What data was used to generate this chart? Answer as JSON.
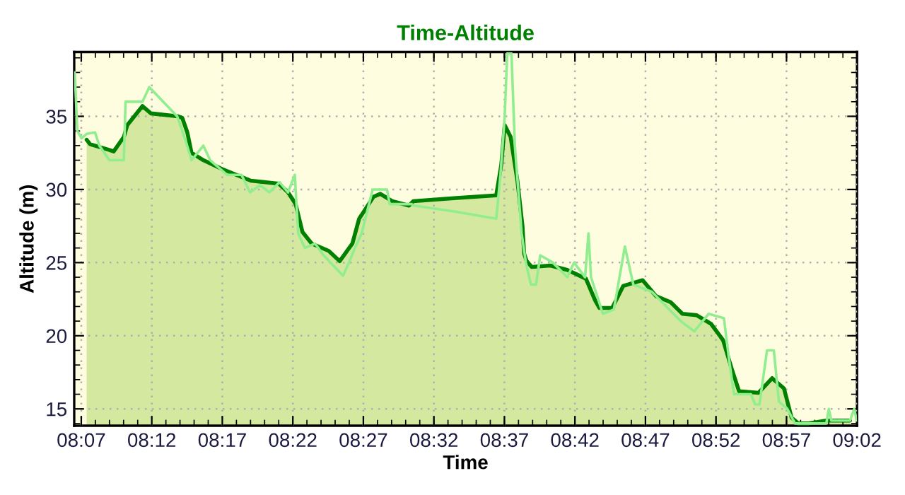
{
  "chart_data": {
    "type": "line",
    "title": "Time-Altitude",
    "xlabel": "Time",
    "ylabel": "Altitude (m)",
    "xlim": [
      8.10833,
      9.03333
    ],
    "ylim": [
      13.85,
      39.4
    ],
    "xticks": [
      {
        "value": 8.11667,
        "label": "08:07"
      },
      {
        "value": 8.2,
        "label": "08:12"
      },
      {
        "value": 8.28333,
        "label": "08:17"
      },
      {
        "value": 8.36667,
        "label": "08:22"
      },
      {
        "value": 8.45,
        "label": "08:27"
      },
      {
        "value": 8.53333,
        "label": "08:32"
      },
      {
        "value": 8.61667,
        "label": "08:37"
      },
      {
        "value": 8.7,
        "label": "08:42"
      },
      {
        "value": 8.78333,
        "label": "08:47"
      },
      {
        "value": 8.86667,
        "label": "08:52"
      },
      {
        "value": 8.95,
        "label": "08:57"
      },
      {
        "value": 9.03333,
        "label": "09:02"
      }
    ],
    "yticks": [
      15,
      20,
      25,
      30,
      35
    ],
    "grid": true,
    "legend": false,
    "marker": "none",
    "line_style": "solid",
    "series": [
      {
        "color": "#90ee90",
        "x": [
          8.109,
          8.112,
          8.117,
          8.123,
          8.133,
          8.138,
          8.15,
          8.167,
          8.169,
          8.189,
          8.197,
          8.23,
          8.239,
          8.247,
          8.261,
          8.269,
          8.289,
          8.306,
          8.316,
          8.328,
          8.339,
          8.351,
          8.361,
          8.369,
          8.373,
          8.381,
          8.393,
          8.403,
          8.426,
          8.433,
          8.44,
          8.448,
          8.461,
          8.478,
          8.481,
          8.507,
          8.51,
          8.557,
          8.607,
          8.612,
          8.617,
          8.62,
          8.625,
          8.629,
          8.637,
          8.642,
          8.648,
          8.654,
          8.659,
          8.674,
          8.691,
          8.699,
          8.712,
          8.716,
          8.719,
          8.733,
          8.746,
          8.759,
          8.769,
          8.791,
          8.808,
          8.825,
          8.841,
          8.858,
          8.876,
          8.883,
          8.888,
          8.908,
          8.913,
          8.918,
          8.927,
          8.935,
          8.941,
          8.951,
          8.96,
          8.997,
          9.0,
          9.003,
          9.025,
          9.03,
          9.033
        ],
        "values": [
          38.0,
          34.0,
          33.5,
          33.8,
          33.9,
          33.0,
          32.0,
          32.0,
          36.0,
          36.0,
          37.0,
          35.0,
          33.5,
          32.0,
          33.0,
          32.0,
          31.0,
          31.0,
          29.8,
          30.3,
          29.8,
          30.5,
          29.8,
          31.0,
          27.0,
          26.0,
          26.3,
          25.5,
          24.1,
          25.0,
          26.0,
          27.0,
          30.0,
          30.0,
          29.0,
          29.0,
          28.9,
          28.5,
          28.0,
          31.0,
          35.0,
          39.3,
          39.3,
          33.0,
          27.0,
          25.0,
          23.5,
          23.5,
          25.5,
          25.0,
          24.0,
          25.0,
          24.0,
          27.0,
          24.0,
          21.5,
          21.8,
          26.1,
          23.5,
          23.0,
          22.0,
          21.0,
          20.3,
          21.5,
          21.2,
          18.0,
          16.0,
          16.0,
          15.3,
          15.3,
          19.0,
          19.0,
          15.5,
          15.0,
          14.0,
          14.0,
          15.0,
          14.2,
          14.2,
          15.0,
          14.2
        ]
      },
      {
        "type": "area",
        "color": "#008000",
        "x": [
          8.123,
          8.127,
          8.15,
          8.155,
          8.167,
          8.171,
          8.189,
          8.199,
          8.231,
          8.236,
          8.242,
          8.247,
          8.261,
          8.283,
          8.317,
          8.35,
          8.361,
          8.37,
          8.378,
          8.389,
          8.409,
          8.422,
          8.437,
          8.445,
          8.462,
          8.47,
          8.484,
          8.504,
          8.509,
          8.557,
          8.607,
          8.613,
          8.617,
          8.624,
          8.632,
          8.638,
          8.64,
          8.643,
          8.649,
          8.671,
          8.691,
          8.713,
          8.724,
          8.729,
          8.744,
          8.757,
          8.78,
          8.796,
          8.813,
          8.827,
          8.844,
          8.861,
          8.875,
          8.886,
          8.894,
          8.917,
          8.933,
          8.947,
          8.956,
          8.964,
          8.975,
          8.997,
          9.022,
          9.025
        ],
        "values": [
          33.4,
          33.1,
          32.7,
          32.6,
          33.6,
          34.4,
          35.7,
          35.2,
          35.0,
          34.9,
          33.9,
          32.5,
          32.0,
          31.4,
          30.6,
          30.4,
          29.8,
          29.0,
          27.1,
          26.3,
          25.8,
          25.1,
          26.3,
          28.0,
          29.5,
          29.7,
          29.2,
          28.9,
          29.2,
          29.4,
          29.6,
          31.7,
          34.4,
          33.6,
          30.6,
          27.5,
          25.6,
          25.1,
          24.7,
          24.8,
          24.5,
          23.9,
          22.4,
          21.9,
          21.9,
          23.4,
          23.8,
          22.7,
          22.3,
          21.5,
          21.4,
          20.8,
          19.7,
          17.6,
          16.2,
          16.1,
          17.1,
          16.4,
          14.4,
          14.0,
          14.0,
          14.2,
          14.2,
          14.2
        ]
      }
    ]
  }
}
